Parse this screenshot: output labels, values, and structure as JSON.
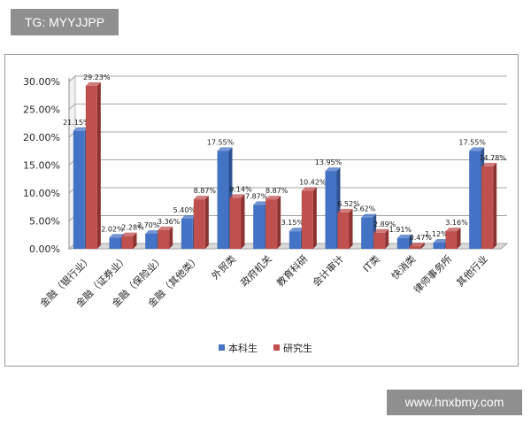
{
  "header_badge": "TG: MYYJJPP",
  "footer_badge": "www.hnxbmy.com",
  "colors": {
    "benke": "#4472c4",
    "yanjiu": "#c0504d"
  },
  "chart_data": {
    "type": "bar",
    "categories": [
      "金融（银行业）",
      "金融（证券业）",
      "金融（保险业）",
      "金融（其他类）",
      "外贸类",
      "政府机关",
      "教育科研",
      "会计审计",
      "IT类",
      "快消类",
      "律师事务所",
      "其他行业"
    ],
    "series": [
      {
        "name": "本科生",
        "values": [
          21.15,
          2.02,
          2.7,
          5.4,
          17.55,
          7.87,
          3.15,
          13.95,
          5.62,
          1.91,
          1.12,
          17.55
        ],
        "labels": [
          "21.15%",
          "2.02%",
          "2.70%",
          "5.40%",
          "17.55%",
          "7.87%",
          "3.15%",
          "13.95%",
          "5.62%",
          "1.91%",
          "1.12%",
          "17.55%"
        ]
      },
      {
        "name": "研究生",
        "values": [
          29.23,
          2.28,
          3.36,
          8.87,
          9.14,
          8.87,
          10.42,
          6.52,
          2.89,
          0.47,
          3.16,
          14.78
        ],
        "labels": [
          "29.23%",
          "2.28%",
          "3.36%",
          "8.87%",
          "9.14%",
          "8.87%",
          "10.42%",
          "6.52%",
          "2.89%",
          "0.47%",
          "3.16%",
          "14.78%"
        ]
      }
    ],
    "yticks": [
      0,
      5,
      10,
      15,
      20,
      25,
      30
    ],
    "ytick_labels": [
      "0.00%",
      "5.00%",
      "10.00%",
      "15.00%",
      "20.00%",
      "25.00%",
      "30.00%"
    ],
    "ylim": [
      0,
      30
    ],
    "grid": true,
    "legend_position": "bottom"
  }
}
